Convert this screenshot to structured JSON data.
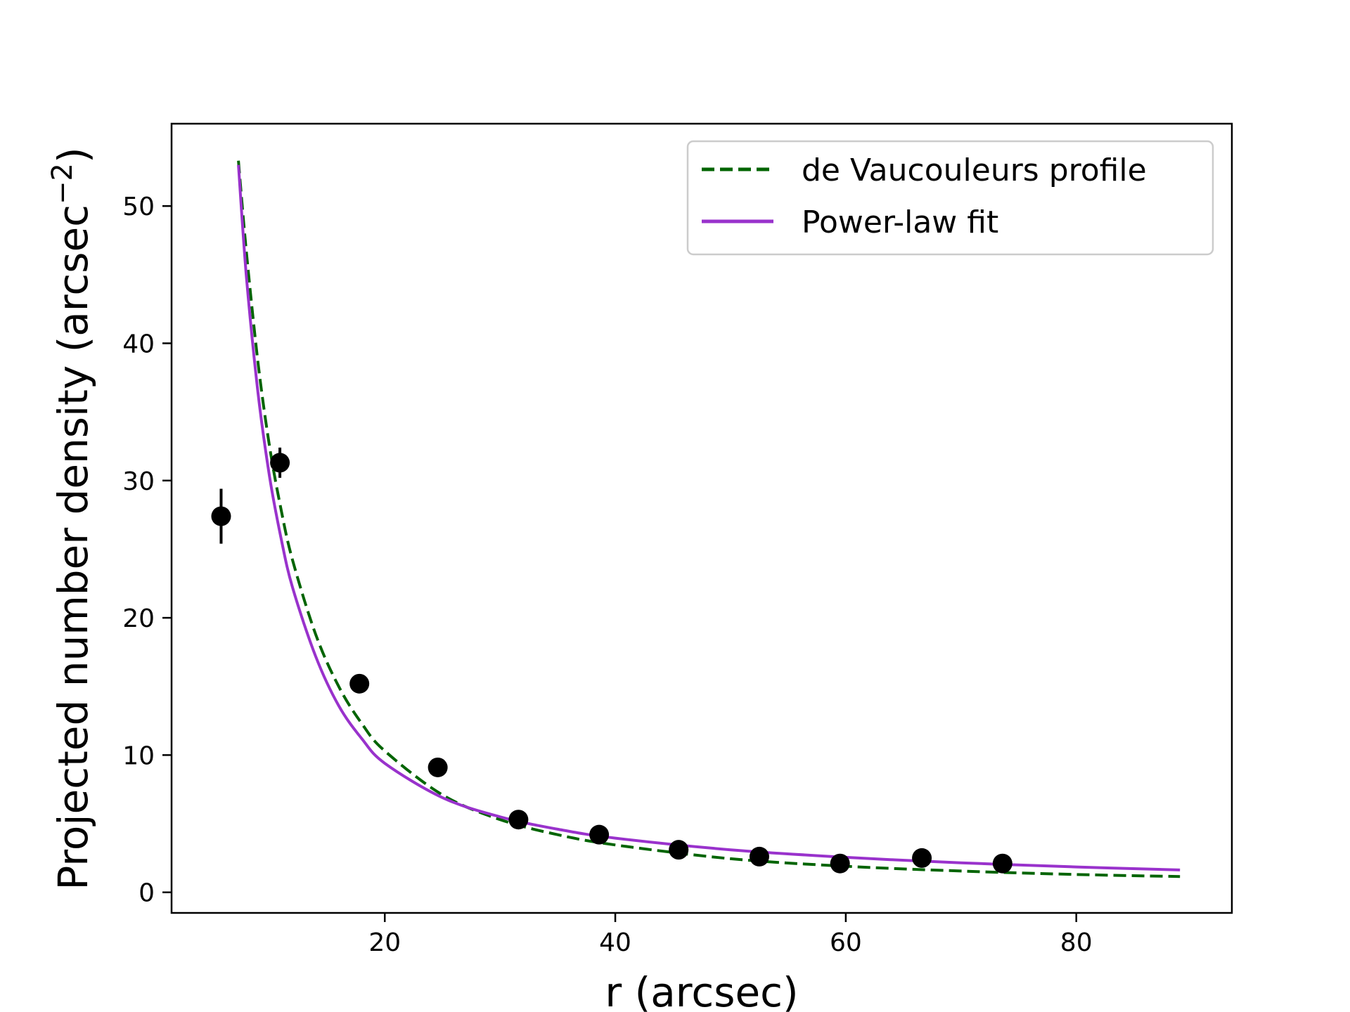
{
  "chart_data": {
    "type": "scatter",
    "xlabel": "r (arcsec)",
    "ylabel": "Projected number density (arcsec",
    "ylabel_sup": "−2",
    "ylabel_close": ")",
    "xlim": [
      1.5,
      93.5
    ],
    "ylim": [
      -1.5,
      56
    ],
    "xticks": [
      20,
      40,
      60,
      80
    ],
    "yticks": [
      0,
      10,
      20,
      30,
      40,
      50
    ],
    "grid": false,
    "legend_position": "top-right",
    "points": {
      "name": "",
      "color": "#000000",
      "x": [
        5.8,
        10.9,
        17.8,
        24.6,
        31.6,
        38.6,
        45.5,
        52.5,
        59.5,
        66.6,
        73.6
      ],
      "y": [
        27.4,
        31.3,
        15.2,
        9.1,
        5.3,
        4.2,
        3.1,
        2.6,
        2.1,
        2.5,
        2.1
      ],
      "yerr": [
        2.0,
        1.1,
        0.5,
        0.4,
        0.3,
        0.25,
        0.2,
        0.2,
        0.2,
        0.2,
        0.2
      ]
    },
    "series": [
      {
        "name": "de Vaucouleurs profile",
        "color": "#006400",
        "style": "dashed",
        "x": [
          7.3,
          8,
          9,
          10,
          11,
          12,
          14,
          16,
          18,
          20,
          25,
          30,
          35,
          40,
          50,
          60,
          70,
          80,
          89
        ],
        "y": [
          53.3,
          46.6,
          38.6,
          32.5,
          27.9,
          24.2,
          18.8,
          15.0,
          12.3,
          10.3,
          7.1,
          5.3,
          4.2,
          3.45,
          2.45,
          1.9,
          1.55,
          1.3,
          1.15
        ]
      },
      {
        "name": "Power-law fit",
        "color": "#9932CC",
        "style": "solid",
        "x": [
          7.3,
          8,
          9,
          10,
          11,
          12,
          14,
          16,
          18,
          20,
          25,
          30,
          35,
          40,
          50,
          60,
          70,
          80,
          89
        ],
        "y": [
          53.0,
          44.8,
          36.4,
          30.3,
          25.8,
          22.2,
          17.2,
          13.6,
          11.2,
          9.4,
          6.9,
          5.5,
          4.6,
          3.95,
          3.1,
          2.55,
          2.15,
          1.85,
          1.63
        ]
      }
    ]
  }
}
